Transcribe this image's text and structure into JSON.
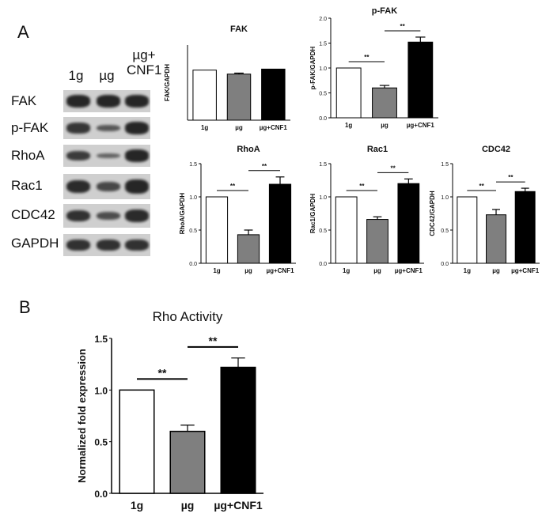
{
  "panels": {
    "a": "A",
    "b": "B"
  },
  "blot": {
    "lanes": [
      "1g",
      "µg",
      "µg+\nCNF1"
    ],
    "rows": [
      {
        "label": "FAK",
        "intensity": [
          1.0,
          1.0,
          1.0
        ]
      },
      {
        "label": "p-FAK",
        "intensity": [
          0.85,
          0.55,
          1.0
        ]
      },
      {
        "label": "RhoA",
        "intensity": [
          0.8,
          0.45,
          1.0
        ]
      },
      {
        "label": "Rac1",
        "intensity": [
          0.95,
          0.7,
          1.0
        ]
      },
      {
        "label": "CDC42",
        "intensity": [
          0.9,
          0.65,
          0.95
        ]
      },
      {
        "label": "GAPDH",
        "intensity": [
          0.9,
          0.9,
          0.9
        ]
      }
    ]
  },
  "colors": {
    "white_bar": "#ffffff",
    "gray_bar": "#7f7f7f",
    "black_bar": "#000000"
  },
  "chart_data": [
    {
      "type": "bar",
      "title": "FAK",
      "ylabel": "FAK/GAPDH",
      "categories": [
        "1g",
        "µg",
        "µg+CNF1"
      ],
      "values": [
        1.0,
        0.92,
        1.02
      ],
      "errors": [
        0,
        0.02,
        0
      ],
      "ylim": [
        0,
        1.5
      ],
      "yticks": [],
      "sig": []
    },
    {
      "type": "bar",
      "title": "p-FAK",
      "ylabel": "p-FAK/GAPDH",
      "categories": [
        "1g",
        "µg",
        "µg+CNF1"
      ],
      "values": [
        1.0,
        0.6,
        1.52
      ],
      "errors": [
        0,
        0.05,
        0.1
      ],
      "ylim": [
        0,
        2.0
      ],
      "yticks": [
        "0.0",
        "0.5",
        "1.0",
        "1.5",
        "2.0"
      ],
      "sig": [
        "**",
        "**"
      ]
    },
    {
      "type": "bar",
      "title": "RhoA",
      "ylabel": "RhoA/GAPDH",
      "categories": [
        "1g",
        "µg",
        "µg+CNF1"
      ],
      "values": [
        1.0,
        0.43,
        1.19
      ],
      "errors": [
        0,
        0.07,
        0.11
      ],
      "ylim": [
        0,
        1.5
      ],
      "yticks": [
        "0.0",
        "0.5",
        "1.0",
        "1.5"
      ],
      "sig": [
        "**",
        "**"
      ]
    },
    {
      "type": "bar",
      "title": "Rac1",
      "ylabel": "Rac1/GAPDH",
      "categories": [
        "1g",
        "µg",
        "µg+CNF1"
      ],
      "values": [
        1.0,
        0.66,
        1.2
      ],
      "errors": [
        0,
        0.04,
        0.07
      ],
      "ylim": [
        0,
        1.5
      ],
      "yticks": [
        "0.0",
        "0.5",
        "1.0",
        "1.5"
      ],
      "sig": [
        "**",
        "**"
      ]
    },
    {
      "type": "bar",
      "title": "CDC42",
      "ylabel": "CDC42/GAPDH",
      "categories": [
        "1g",
        "µg",
        "µg+CNF1"
      ],
      "values": [
        1.0,
        0.73,
        1.08
      ],
      "errors": [
        0,
        0.08,
        0.05
      ],
      "ylim": [
        0,
        1.5
      ],
      "yticks": [
        "0.0",
        "0.5",
        "1.0",
        "1.5"
      ],
      "sig": [
        "**",
        "**"
      ]
    },
    {
      "type": "bar",
      "title": "Rho Activity",
      "ylabel": "Normalized fold expression",
      "categories": [
        "1g",
        "µg",
        "µg+CNF1"
      ],
      "values": [
        1.0,
        0.6,
        1.22
      ],
      "errors": [
        0,
        0.06,
        0.09
      ],
      "ylim": [
        0,
        1.5
      ],
      "yticks": [
        "0.0",
        "0.5",
        "1.0",
        "1.5"
      ],
      "sig": [
        "**",
        "**"
      ]
    }
  ]
}
